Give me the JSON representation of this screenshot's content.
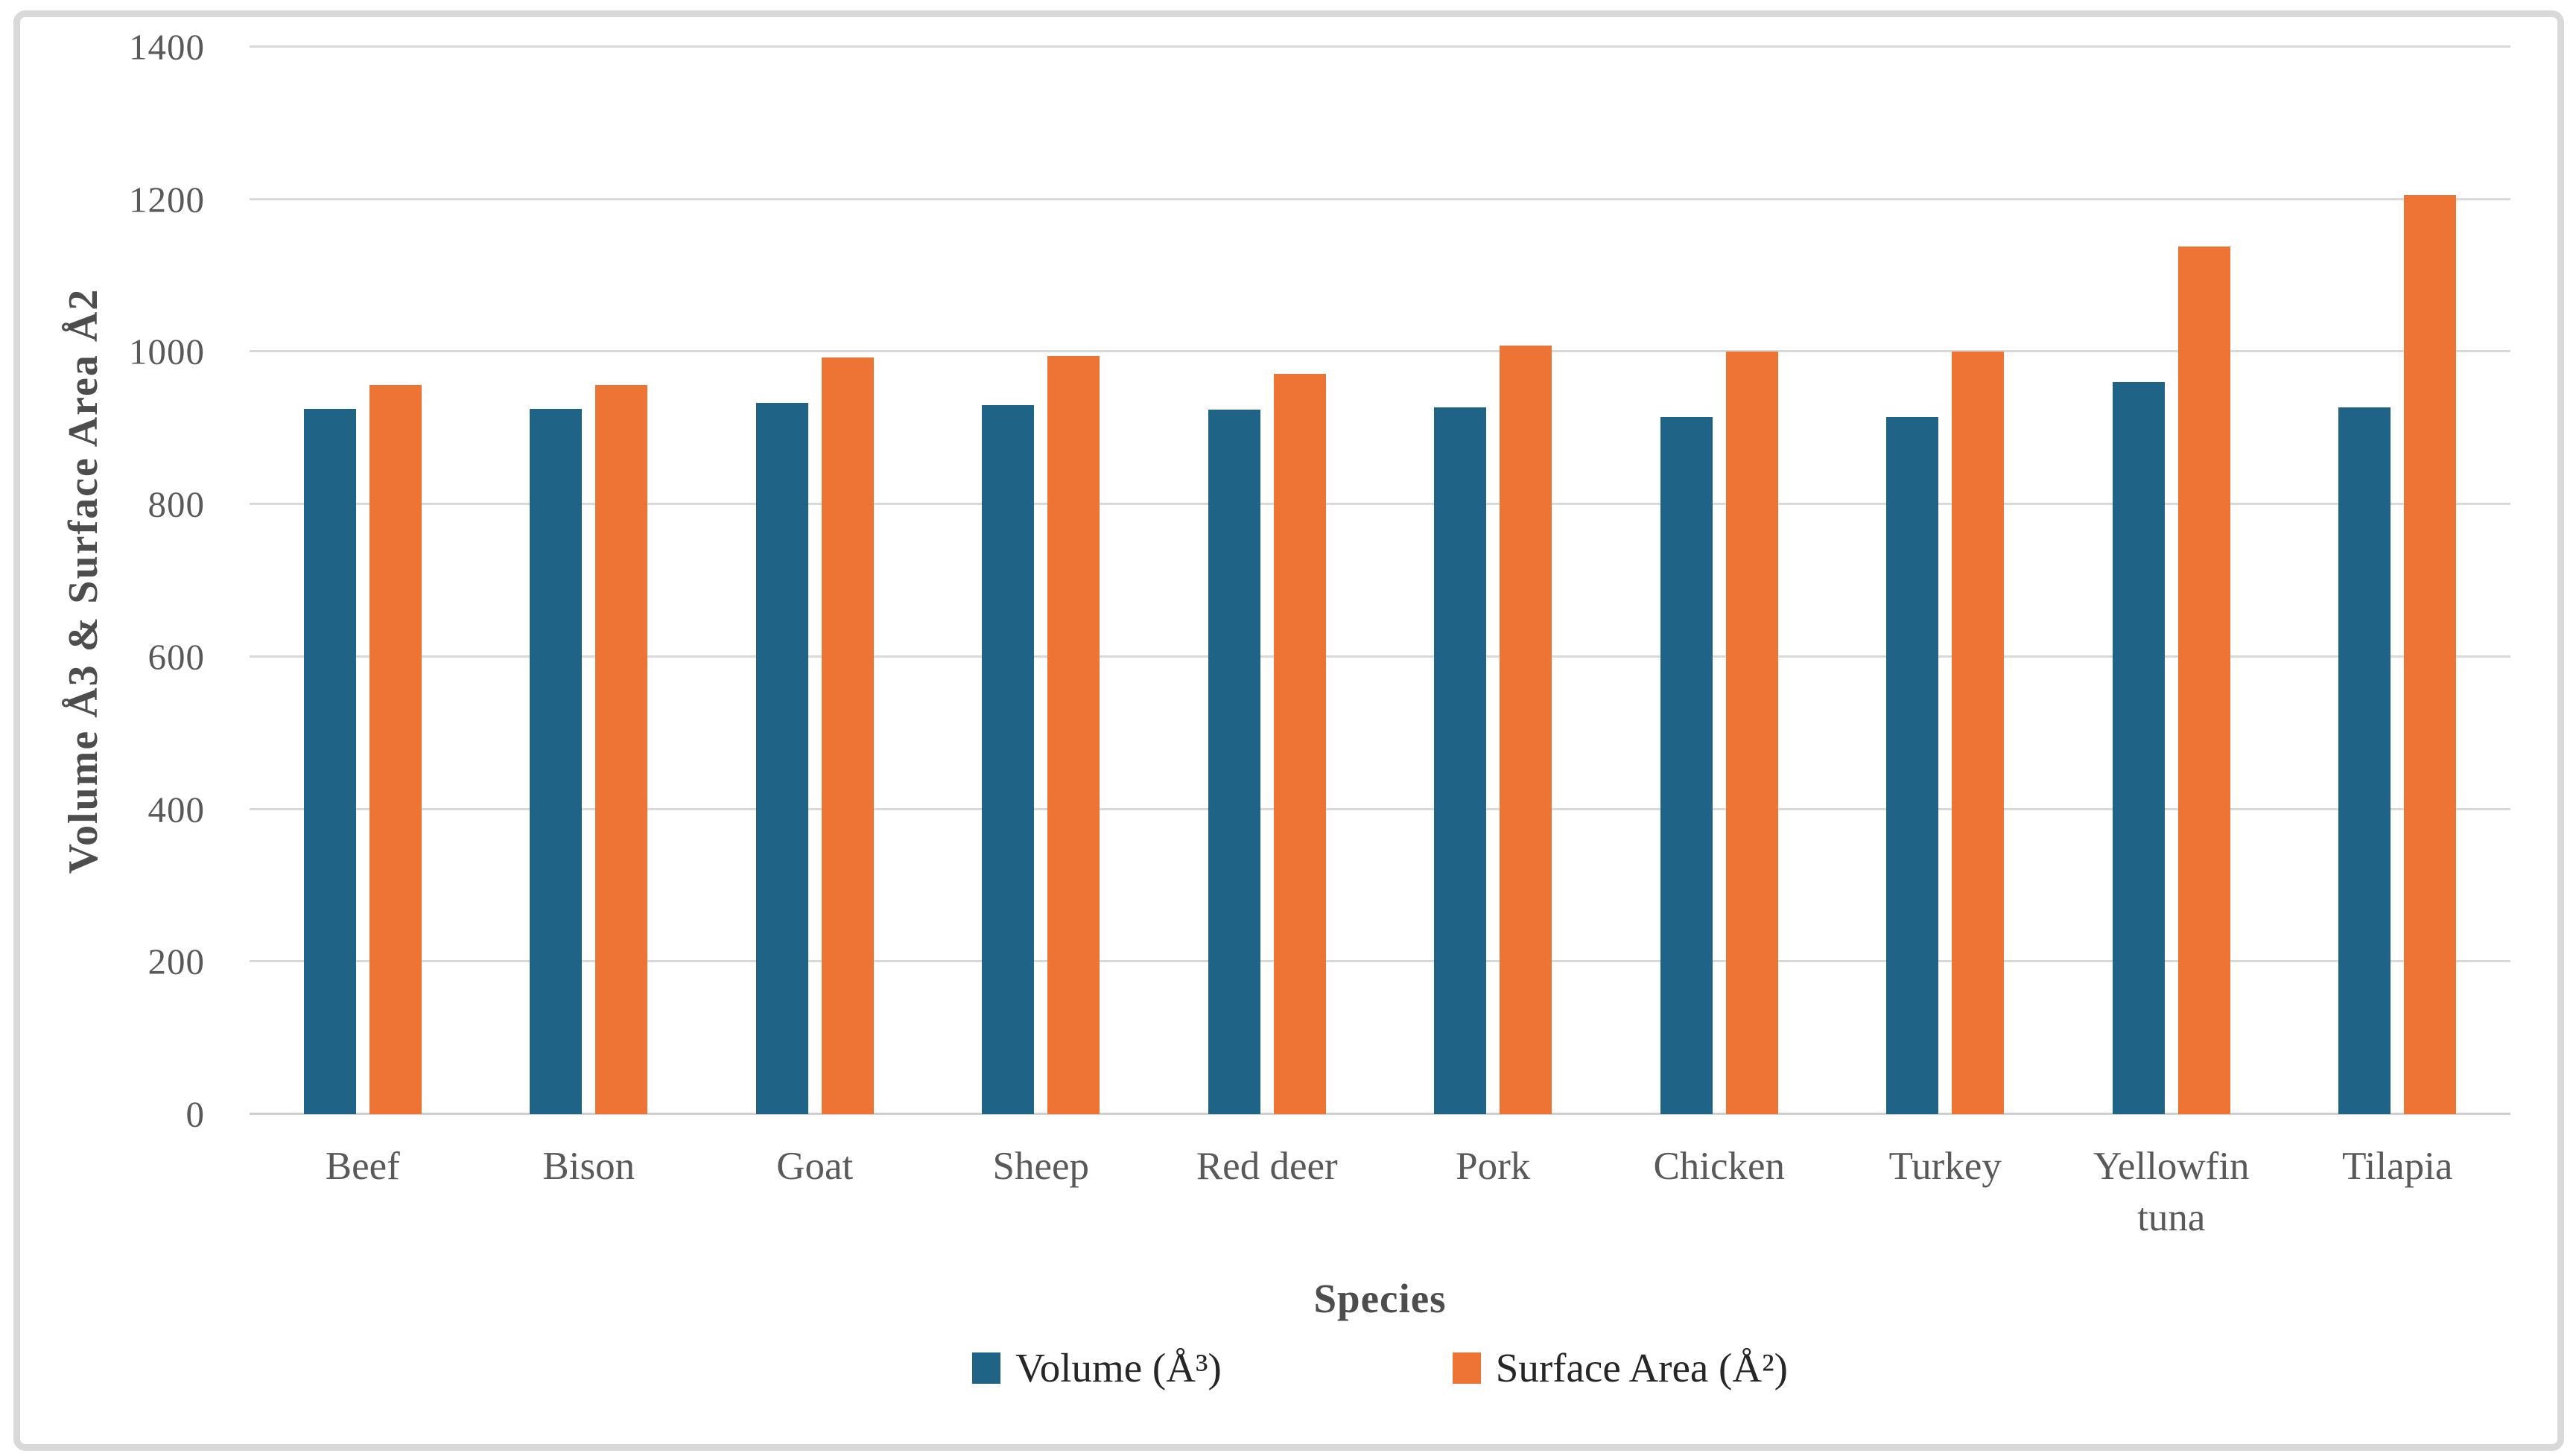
{
  "figure": {
    "background_color": "#FFFFFF",
    "border_color": "#D9D9D9",
    "gridline_color": "#D9D9D9",
    "tick_label_color": "#595959",
    "title_color": "#4D4D4D",
    "legend_text_color": "#262626"
  },
  "chart_data": {
    "type": "bar",
    "title": "",
    "xlabel": "Species",
    "ylabel": "Volume Å3 & Surface Area Å2",
    "ylim": [
      0,
      1400
    ],
    "ytick_interval": 200,
    "yticks": [
      "1400",
      "1200",
      "1000",
      "800",
      "600",
      "400",
      "200",
      "0"
    ],
    "grid": "horizontal",
    "legend_position": "bottom",
    "categories": [
      "Beef",
      "Bison",
      "Goat",
      "Sheep",
      "Red deer",
      "Pork",
      "Chicken",
      "Turkey",
      "Yellowfin tuna",
      "Tilapia"
    ],
    "series": [
      {
        "name": "Volume (Å³)",
        "color": "#1F6386",
        "values": [
          925,
          925,
          933,
          930,
          924,
          927,
          914,
          914,
          960,
          927
        ]
      },
      {
        "name": "Surface Area (Å²)",
        "color": "#ED7434",
        "values": [
          956,
          956,
          993,
          995,
          971,
          1008,
          1000,
          1000,
          1138,
          1206
        ]
      }
    ]
  }
}
